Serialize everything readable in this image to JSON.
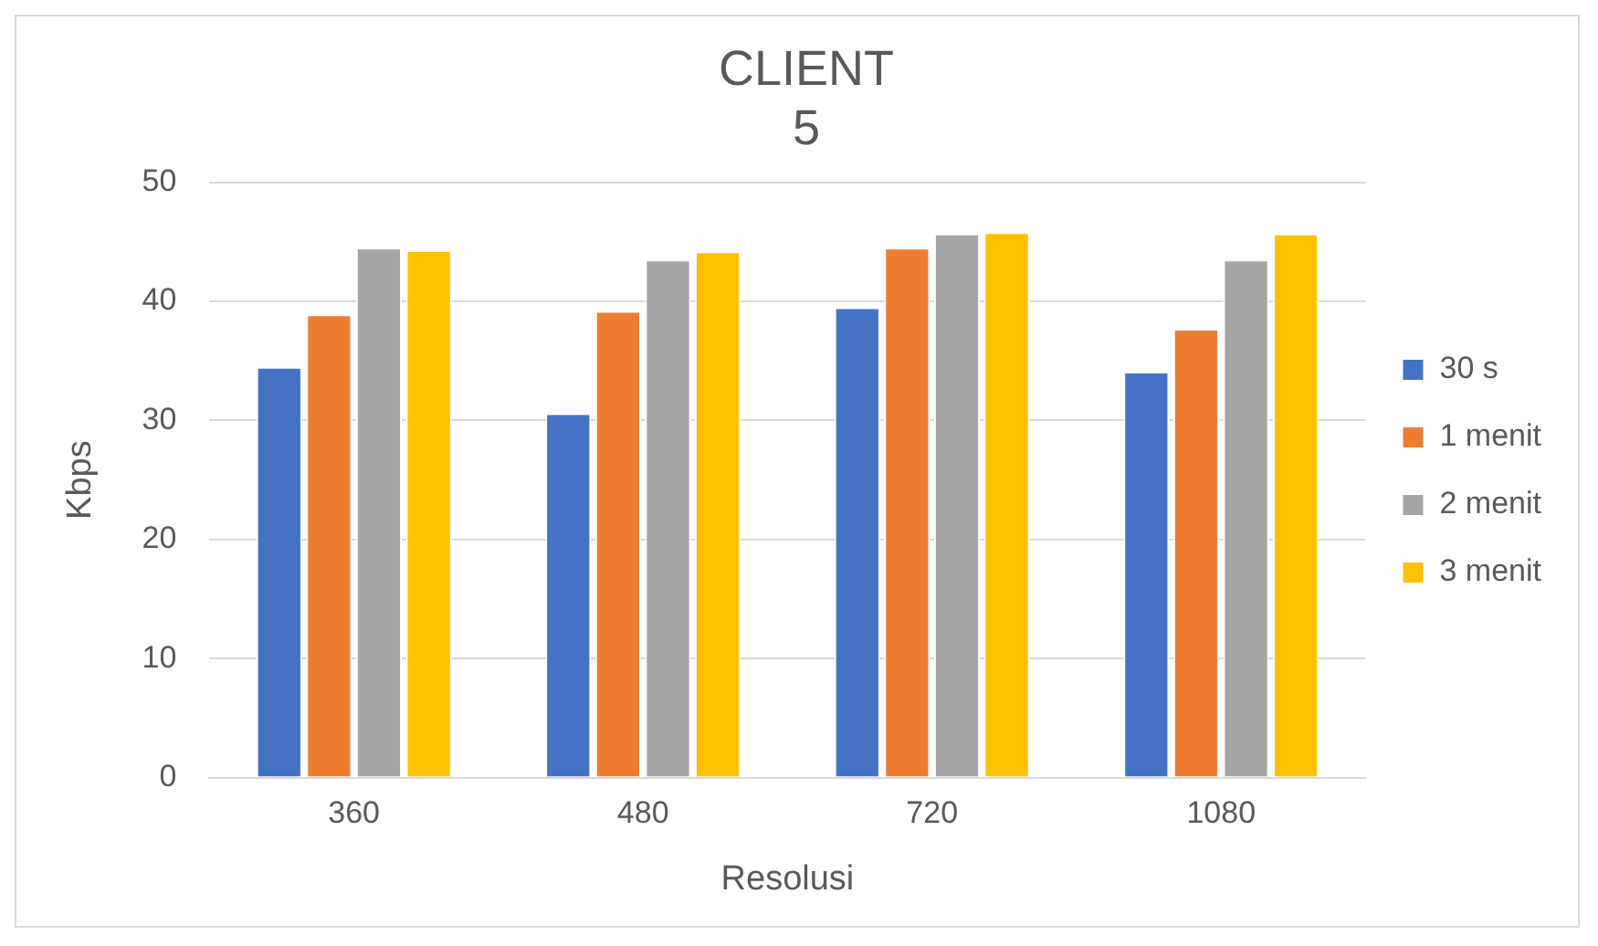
{
  "chart_data": {
    "type": "bar",
    "title": [
      "CLIENT",
      "5"
    ],
    "xlabel": "Resolusi",
    "ylabel": "Kbps",
    "categories": [
      "360",
      "480",
      "720",
      "1080"
    ],
    "series": [
      {
        "name": "30 s",
        "color": "#4472c4",
        "values": [
          34.5,
          30.6,
          39.5,
          34.1
        ]
      },
      {
        "name": "1 menit",
        "color": "#ed7d31",
        "values": [
          38.9,
          39.2,
          44.5,
          37.7
        ]
      },
      {
        "name": "2 menit",
        "color": "#a5a5a5",
        "values": [
          44.5,
          43.5,
          45.7,
          43.5
        ]
      },
      {
        "name": "3 menit",
        "color": "#ffc000",
        "values": [
          44.3,
          44.2,
          45.8,
          45.7
        ]
      }
    ],
    "ylim": [
      0,
      50
    ],
    "yticks": [
      0,
      10,
      20,
      30,
      40,
      50
    ],
    "grid": "y",
    "legend": "right"
  }
}
